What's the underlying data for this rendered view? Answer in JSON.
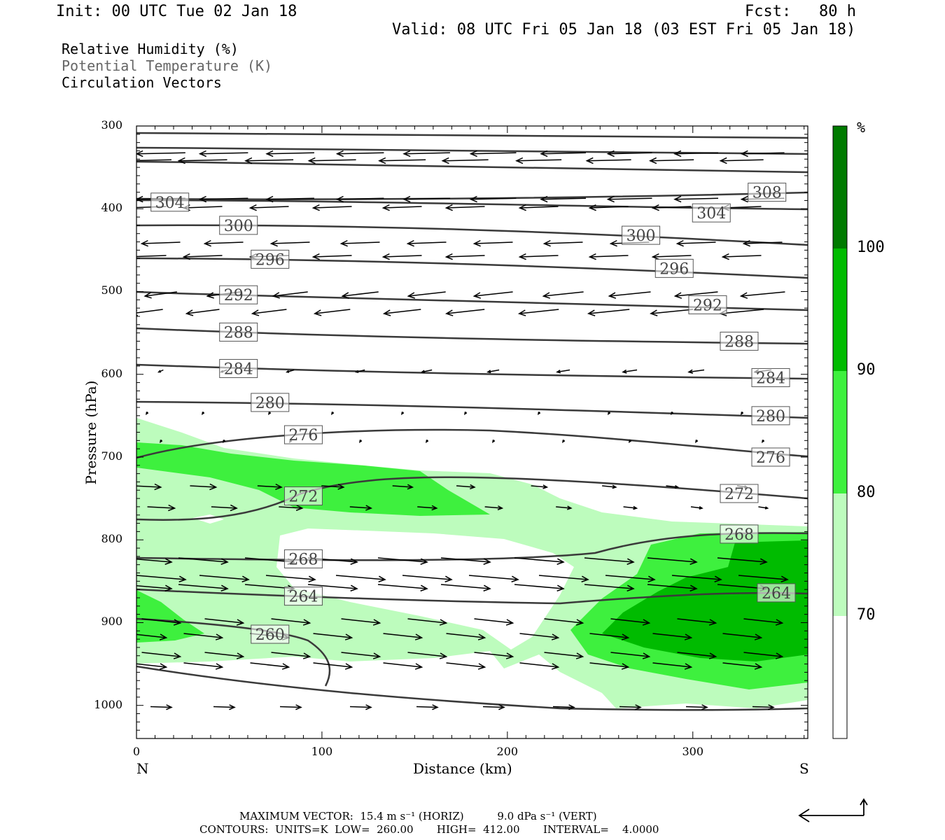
{
  "header": {
    "init": "Init: 00 UTC Tue 02 Jan 18",
    "fcst": "Fcst:   80 h",
    "valid": "Valid: 08 UTC Fri 05 Jan 18 (03 EST Fri 05 Jan 18)"
  },
  "legend_text": {
    "line1": "Relative Humidity (%)",
    "line2": "Potential Temperature (K)",
    "line3": "Circulation Vectors"
  },
  "footer": {
    "line1": "MAXIMUM VECTOR:  15.4 m s⁻¹ (HORIZ)          9.0 dPa s⁻¹ (VERT)",
    "line2": "CONTOURS:  UNITS=K  LOW=  260.00       HIGH=  412.00       INTERVAL=    4.0000"
  },
  "colors": {
    "rh_70": "#bdfcbd",
    "rh_80": "#3ef03e",
    "rh_90": "#00bb00",
    "rh_100": "#007a00",
    "theta_line": "#3a3a3a"
  },
  "chart_data": {
    "type": "cross-section",
    "x_axis": {
      "label": "Distance (km)",
      "range": [
        0,
        362
      ],
      "ticks": [
        0,
        100,
        200,
        300
      ],
      "left_label": "N",
      "right_label": "S"
    },
    "y_axis": {
      "label": "Pressure (hPa)",
      "range": [
        300,
        1040
      ],
      "ticks": [
        300,
        400,
        500,
        600,
        700,
        800,
        900,
        1000
      ]
    },
    "colorbar": {
      "unit": "%",
      "levels": [
        70,
        80,
        90,
        100
      ]
    },
    "theta_labels": [
      {
        "value": "308",
        "x": 340,
        "p": 380
      },
      {
        "value": "304",
        "x": 18,
        "p": 392
      },
      {
        "value": "304",
        "x": 310,
        "p": 405
      },
      {
        "value": "300",
        "x": 55,
        "p": 420
      },
      {
        "value": "300",
        "x": 272,
        "p": 432
      },
      {
        "value": "296",
        "x": 72,
        "p": 461
      },
      {
        "value": "296",
        "x": 290,
        "p": 472
      },
      {
        "value": "292",
        "x": 55,
        "p": 504
      },
      {
        "value": "292",
        "x": 308,
        "p": 516
      },
      {
        "value": "288",
        "x": 55,
        "p": 549
      },
      {
        "value": "288",
        "x": 325,
        "p": 560
      },
      {
        "value": "284",
        "x": 55,
        "p": 593
      },
      {
        "value": "284",
        "x": 342,
        "p": 604
      },
      {
        "value": "280",
        "x": 72,
        "p": 634
      },
      {
        "value": "280",
        "x": 342,
        "p": 650
      },
      {
        "value": "276",
        "x": 90,
        "p": 673
      },
      {
        "value": "276",
        "x": 342,
        "p": 700
      },
      {
        "value": "272",
        "x": 90,
        "p": 747
      },
      {
        "value": "272",
        "x": 325,
        "p": 744
      },
      {
        "value": "268",
        "x": 90,
        "p": 823
      },
      {
        "value": "268",
        "x": 325,
        "p": 793
      },
      {
        "value": "264",
        "x": 90,
        "p": 868
      },
      {
        "value": "264",
        "x": 345,
        "p": 864
      },
      {
        "value": "260",
        "x": 72,
        "p": 914
      }
    ]
  }
}
